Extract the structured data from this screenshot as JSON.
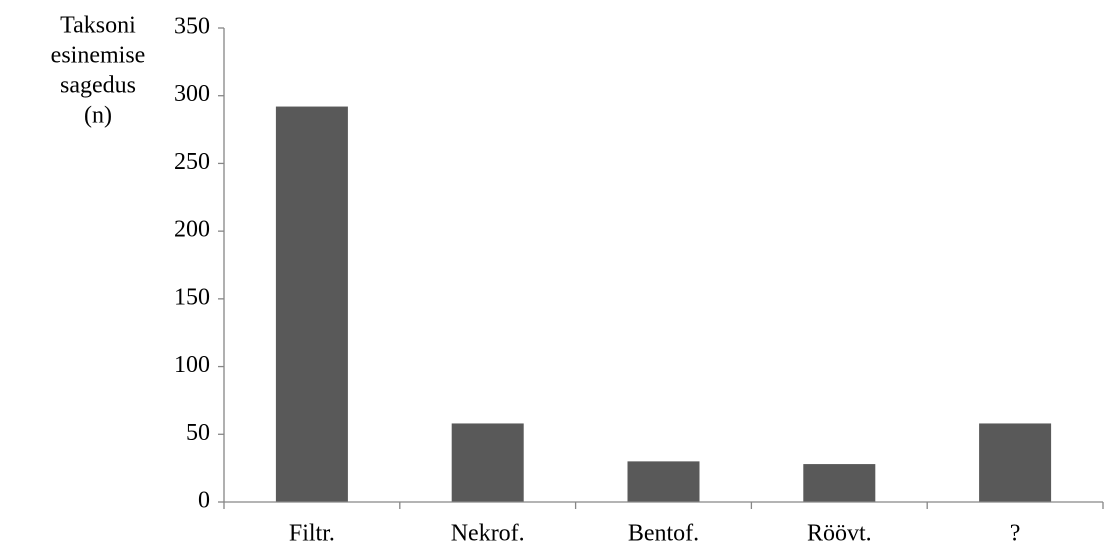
{
  "chart_data": {
    "type": "bar",
    "ylabel": [
      "Taksoni",
      "esinemise",
      "sagedus",
      "(n)"
    ],
    "categories": [
      "Filtr.",
      "Nekrof.",
      "Bentof.",
      "Röövt.",
      "?"
    ],
    "values": [
      292,
      58,
      30,
      28,
      58
    ],
    "ylim": [
      0,
      350
    ],
    "yticks": [
      0,
      50,
      100,
      150,
      200,
      250,
      300,
      350
    ],
    "grid": false,
    "legend": "none",
    "colors": {
      "bar": "#595959",
      "axis": "#868686",
      "text": "#000000"
    }
  }
}
